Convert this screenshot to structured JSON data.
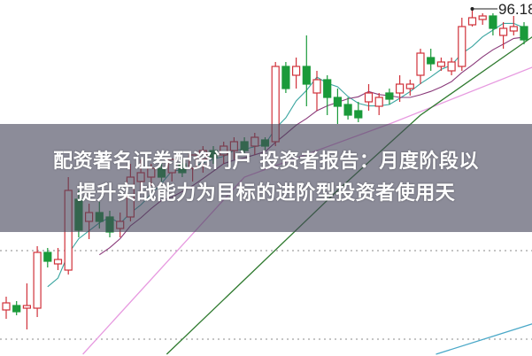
{
  "title": {
    "line1": "配资著名证券配资门户 投资者报告：月度阶段以",
    "line2": "提升实战能力为目标的进阶型投资者使用天"
  },
  "chart_data": {
    "type": "candlestick",
    "high_label": "96.18",
    "colors": {
      "up": "#d0313a",
      "down": "#1a9a3a",
      "ma_short": "#3aa5a0",
      "ma_mid": "#8a3a7a",
      "ma_pink": "#e79ae0",
      "ma_green": "#2f7a2f",
      "ma_blue": "#4aa8c8"
    },
    "grid": true,
    "gridlines": [
      82.53,
      77.53
    ],
    "ohlc": [
      [
        79.18,
        79.93,
        78.68,
        79.58
      ],
      [
        79.43,
        79.68,
        78.88,
        79.08
      ],
      [
        79.28,
        80.68,
        78.08,
        79.43
      ],
      [
        79.28,
        82.78,
        78.78,
        82.43
      ],
      [
        82.43,
        82.68,
        81.58,
        81.93
      ],
      [
        81.78,
        82.68,
        81.43,
        82.03
      ],
      [
        81.43,
        86.68,
        81.18,
        85.93
      ],
      [
        85.43,
        85.93,
        83.28,
        83.68
      ],
      [
        84.18,
        85.18,
        83.18,
        84.68
      ],
      [
        84.68,
        85.28,
        83.78,
        84.18
      ],
      [
        84.43,
        84.78,
        83.28,
        83.58
      ],
      [
        83.78,
        84.68,
        83.28,
        84.18
      ],
      [
        84.43,
        87.43,
        84.18,
        86.68
      ],
      [
        86.43,
        87.68,
        85.93,
        86.93
      ],
      [
        86.68,
        87.43,
        86.18,
        87.18
      ],
      [
        87.18,
        87.43,
        86.43,
        86.68
      ],
      [
        86.93,
        87.68,
        86.43,
        87.68
      ],
      [
        87.43,
        87.68,
        86.68,
        86.93
      ],
      [
        87.18,
        87.93,
        86.43,
        87.93
      ],
      [
        87.68,
        88.43,
        86.93,
        88.18
      ],
      [
        88.18,
        88.43,
        87.43,
        87.78
      ],
      [
        87.93,
        88.68,
        87.43,
        88.43
      ],
      [
        88.18,
        88.93,
        87.68,
        88.68
      ],
      [
        88.68,
        88.93,
        87.93,
        88.18
      ],
      [
        88.43,
        89.18,
        87.93,
        88.93
      ],
      [
        88.78,
        88.93,
        88.18,
        88.43
      ],
      [
        88.68,
        93.18,
        88.43,
        92.93
      ],
      [
        92.93,
        93.18,
        91.43,
        91.68
      ],
      [
        92.43,
        93.43,
        91.68,
        92.93
      ],
      [
        92.93,
        94.68,
        90.68,
        91.93
      ],
      [
        91.43,
        92.68,
        90.43,
        92.18
      ],
      [
        92.18,
        92.43,
        90.18,
        91.18
      ],
      [
        91.18,
        91.68,
        89.68,
        90.68
      ],
      [
        90.78,
        91.18,
        89.93,
        90.18
      ],
      [
        90.43,
        90.93,
        89.78,
        90.03
      ],
      [
        90.93,
        91.93,
        90.43,
        91.43
      ],
      [
        90.68,
        91.43,
        90.18,
        91.18
      ],
      [
        91.43,
        91.68,
        90.78,
        91.08
      ],
      [
        91.43,
        92.43,
        90.93,
        91.93
      ],
      [
        91.68,
        92.18,
        91.28,
        91.93
      ],
      [
        92.43,
        93.93,
        91.93,
        93.68
      ],
      [
        93.43,
        93.93,
        92.68,
        93.08
      ],
      [
        92.93,
        93.43,
        92.68,
        93.18
      ],
      [
        92.68,
        93.43,
        92.43,
        93.18
      ],
      [
        92.93,
        95.68,
        92.68,
        95.18
      ],
      [
        95.28,
        96.18,
        95.18,
        95.68
      ],
      [
        95.58,
        95.93,
        95.28,
        95.78
      ],
      [
        95.78,
        95.93,
        94.68,
        95.08
      ],
      [
        94.68,
        95.43,
        93.93,
        95.08
      ],
      [
        94.93,
        95.78,
        94.68,
        95.18
      ],
      [
        95.18,
        95.43,
        94.18,
        94.43
      ]
    ],
    "ma_series": [
      {
        "key": "ma_pink",
        "points": [
          [
            7.4,
            76.68
          ],
          [
            23,
            86.68
          ],
          [
            37,
            89.68
          ],
          [
            51,
            92.93
          ]
        ]
      },
      {
        "key": "ma_green",
        "points": [
          [
            15.5,
            76.68
          ],
          [
            32,
            85.93
          ],
          [
            40,
            90.18
          ],
          [
            51,
            94.68
          ]
        ]
      },
      {
        "key": "ma_blue",
        "points": [
          [
            41.5,
            76.68
          ],
          [
            51,
            78.43
          ]
        ]
      }
    ]
  }
}
